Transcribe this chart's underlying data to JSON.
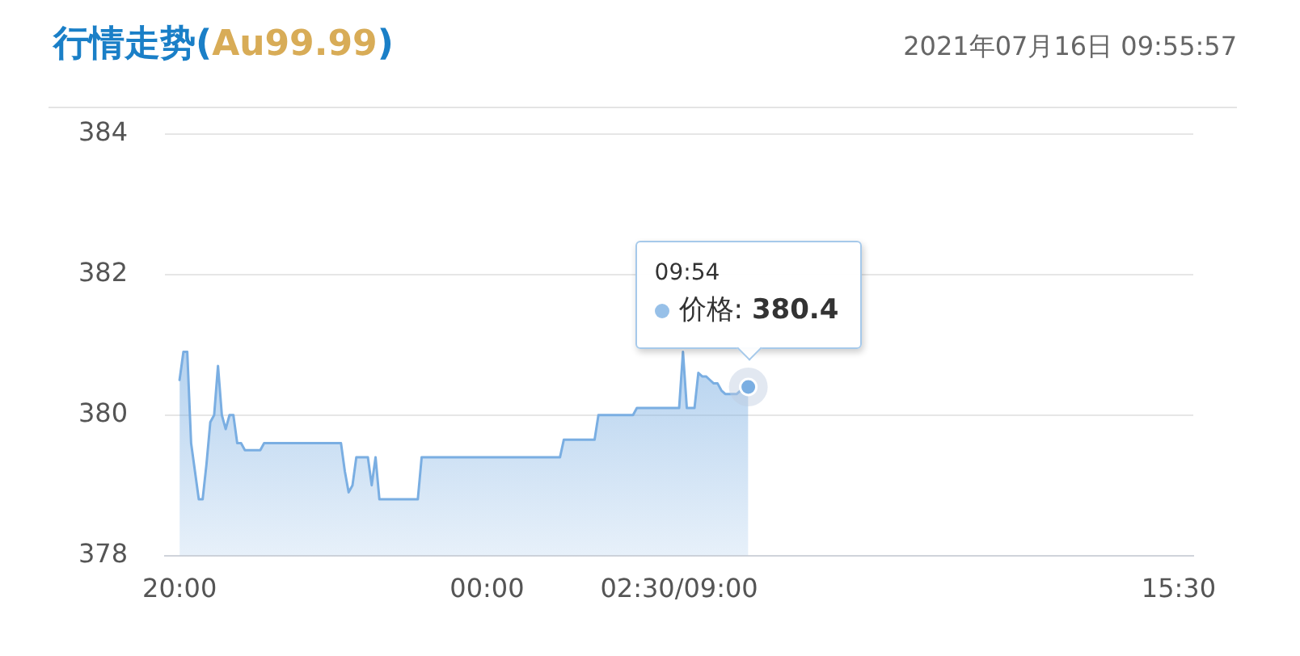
{
  "chart_data": {
    "type": "area",
    "title": "行情走势(Au99.99)",
    "annotations": [
      "2021年07月16日 09:55:57",
      "09:54",
      "价格: 380.4"
    ],
    "categories": [
      "20:00",
      null,
      null,
      null,
      null,
      null,
      null,
      null,
      null,
      null,
      null,
      null,
      null,
      null,
      null,
      null,
      null,
      null,
      null,
      null,
      null,
      null,
      null,
      null,
      null,
      null,
      null,
      null,
      null,
      null,
      null,
      null,
      null,
      null,
      null,
      null,
      null,
      null,
      null,
      null,
      null,
      null,
      null,
      null,
      null,
      null,
      null,
      null,
      null,
      null,
      null,
      null,
      null,
      null,
      null,
      null,
      null,
      null,
      null,
      null,
      null,
      null,
      null,
      null,
      null,
      null,
      null,
      null,
      null,
      null,
      null,
      null,
      null,
      null,
      null,
      null,
      null,
      null,
      null,
      null,
      "00:00",
      null,
      null,
      null,
      null,
      null,
      null,
      null,
      null,
      null,
      null,
      null,
      null,
      null,
      null,
      null,
      null,
      null,
      null,
      null,
      null,
      null,
      null,
      null,
      null,
      null,
      null,
      null,
      null,
      null,
      null,
      null,
      null,
      null,
      null,
      null,
      null,
      null,
      null,
      null,
      null,
      null,
      null,
      null,
      null,
      null,
      null,
      null,
      null,
      null,
      "02:30/09:00",
      null,
      null,
      null,
      null,
      null,
      null,
      null,
      null,
      null,
      null,
      null,
      null,
      null,
      null,
      null,
      null,
      null,
      null,
      null,
      null,
      null,
      null,
      null,
      null,
      null,
      null,
      null,
      null,
      null,
      null,
      null,
      null,
      null,
      null,
      null,
      null,
      null,
      null,
      null,
      null,
      null,
      null,
      null,
      null,
      null,
      null,
      null,
      null,
      null,
      null,
      null,
      null,
      null,
      null,
      null,
      null,
      null,
      null,
      null,
      null,
      null,
      null,
      null,
      null,
      null,
      null,
      null,
      null,
      null,
      null,
      null,
      null,
      null,
      null,
      null,
      null,
      null,
      null,
      null,
      null,
      null,
      null,
      null,
      null,
      null,
      null,
      null,
      null,
      null,
      null,
      null,
      null,
      null,
      null,
      null,
      null,
      null,
      null,
      null,
      null,
      null,
      null,
      null,
      null,
      null,
      null,
      null,
      null,
      null,
      null,
      null,
      null,
      null,
      null,
      null,
      null,
      null,
      null,
      null,
      null,
      null,
      null,
      null,
      null,
      null,
      null,
      null,
      null,
      null,
      "15:30"
    ],
    "ylim": [
      378,
      384
    ],
    "yticks": [
      378,
      380,
      382,
      384
    ],
    "grid": "y",
    "series": [
      {
        "color": "#7aaee2",
        "values": [
          380.5,
          380.9,
          380.9,
          379.6,
          379.2,
          378.8,
          378.8,
          379.3,
          379.9,
          380.0,
          380.7,
          380.0,
          379.8,
          380.0,
          380.0,
          379.6,
          379.6,
          379.5,
          379.5,
          379.5,
          379.5,
          379.5,
          379.6,
          379.6,
          379.6,
          379.6,
          379.6,
          379.6,
          379.6,
          379.6,
          379.6,
          379.6,
          379.6,
          379.6,
          379.6,
          379.6,
          379.6,
          379.6,
          379.6,
          379.6,
          379.6,
          379.6,
          379.6,
          379.2,
          378.9,
          379.0,
          379.4,
          379.4,
          379.4,
          379.4,
          379.0,
          379.4,
          378.8,
          378.8,
          378.8,
          378.8,
          378.8,
          378.8,
          378.8,
          378.8,
          378.8,
          378.8,
          378.8,
          379.4,
          379.4,
          379.4,
          379.4,
          379.4,
          379.4,
          379.4,
          379.4,
          379.4,
          379.4,
          379.4,
          379.4,
          379.4,
          379.4,
          379.4,
          379.4,
          379.4,
          379.4,
          379.4,
          379.4,
          379.4,
          379.4,
          379.4,
          379.4,
          379.4,
          379.4,
          379.4,
          379.4,
          379.4,
          379.4,
          379.4,
          379.4,
          379.4,
          379.4,
          379.4,
          379.4,
          379.4,
          379.65,
          379.65,
          379.65,
          379.65,
          379.65,
          379.65,
          379.65,
          379.65,
          379.65,
          380.0,
          380.0,
          380.0,
          380.0,
          380.0,
          380.0,
          380.0,
          380.0,
          380.0,
          380.0,
          380.1,
          380.1,
          380.1,
          380.1,
          380.1,
          380.1,
          380.1,
          380.1,
          380.1,
          380.1,
          380.1,
          380.1,
          380.9,
          380.1,
          380.1,
          380.1,
          380.6,
          380.55,
          380.55,
          380.5,
          380.45,
          380.45,
          380.35,
          380.3,
          380.3,
          380.3,
          380.3,
          380.35,
          380.35,
          380.4,
          null,
          null,
          null,
          null,
          null,
          null,
          null,
          null,
          null,
          null,
          null,
          null,
          null,
          null,
          null,
          null,
          null,
          null,
          null,
          null,
          null,
          null,
          null,
          null,
          null,
          null,
          null,
          null,
          null,
          null,
          null,
          null,
          null,
          null,
          null,
          null,
          null,
          null,
          null,
          null,
          null,
          null,
          null,
          null,
          null,
          null,
          null,
          null,
          null,
          null,
          null,
          null,
          null,
          null,
          null,
          null,
          null,
          null,
          null,
          null,
          null,
          null,
          null,
          null,
          null,
          null,
          null,
          null,
          null,
          null,
          null,
          null,
          null,
          null,
          null,
          null,
          null,
          null,
          null,
          null,
          null,
          null,
          null,
          null,
          null,
          null,
          null,
          null,
          null,
          null,
          null,
          null,
          null,
          null,
          null,
          null,
          null,
          null,
          null,
          null,
          null,
          null,
          null,
          null,
          null,
          null,
          null,
          null,
          null,
          null,
          null,
          null
        ]
      }
    ]
  }
}
